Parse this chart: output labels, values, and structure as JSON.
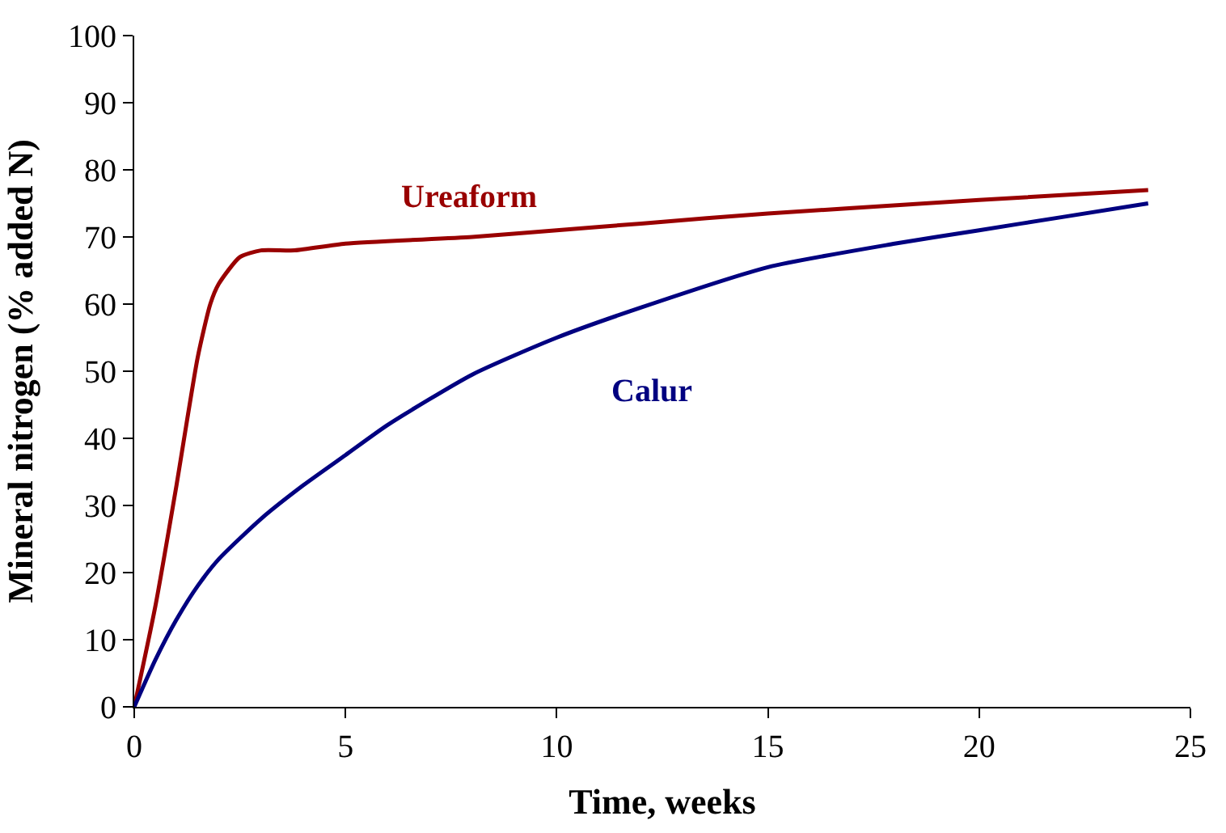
{
  "chart_data": {
    "type": "line",
    "xlabel": "Time, weeks",
    "ylabel": "Mineral nitrogen (% added N)",
    "xlim": [
      0,
      25
    ],
    "xticks": [
      0,
      5,
      10,
      15,
      20,
      25
    ],
    "ylim": [
      0,
      100
    ],
    "yticks": [
      0,
      10,
      20,
      30,
      40,
      50,
      60,
      70,
      80,
      90,
      100
    ],
    "grid": false,
    "legend": false,
    "marker": "none",
    "line_style": "solid",
    "series": [
      {
        "name": "Ureaform",
        "color": "#990000",
        "x": [
          0,
          0.5,
          1,
          1.5,
          1.8,
          2,
          2.5,
          3,
          3.8,
          5,
          8,
          10,
          12,
          15,
          20,
          24
        ],
        "values": [
          0,
          15,
          33,
          52,
          60,
          63,
          67,
          68,
          68,
          69,
          70,
          71,
          72,
          73.5,
          75.5,
          77
        ]
      },
      {
        "name": "Calur",
        "color": "#000080",
        "x": [
          0,
          0.5,
          1,
          1.5,
          2,
          3,
          4,
          5,
          6,
          8,
          10,
          12,
          15,
          18,
          20,
          22,
          24
        ],
        "values": [
          0,
          7,
          13,
          18,
          22,
          28,
          33,
          37.5,
          42,
          49.5,
          55,
          59.5,
          65.5,
          69,
          71,
          73,
          75
        ]
      }
    ]
  }
}
